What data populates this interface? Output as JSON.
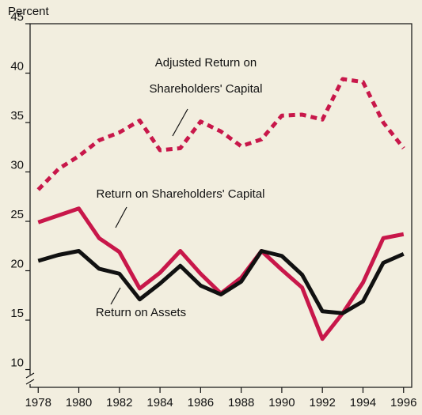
{
  "chart_data": {
    "type": "line",
    "y_axis_label": "Percent",
    "x": [
      1978,
      1979,
      1980,
      1981,
      1982,
      1983,
      1984,
      1985,
      1986,
      1987,
      1988,
      1989,
      1990,
      1991,
      1992,
      1993,
      1994,
      1995,
      1996
    ],
    "xlim": [
      1977.6,
      1996.4
    ],
    "xticks": [
      1978,
      1980,
      1982,
      1984,
      1986,
      1988,
      1990,
      1992,
      1994,
      1996
    ],
    "ylim": [
      8.2,
      45
    ],
    "yticks": [
      10,
      15,
      20,
      25,
      30,
      35,
      40,
      45
    ],
    "series": [
      {
        "name": [
          "Adjusted Return on",
          "Shareholders' Capital"
        ],
        "color": "#c8174a",
        "dashed": true,
        "values": [
          28.2,
          30.3,
          31.6,
          33.2,
          34.0,
          35.2,
          32.2,
          32.4,
          35.1,
          34.1,
          32.6,
          33.3,
          35.7,
          35.8,
          35.3,
          39.4,
          39.1,
          35.0,
          32.4
        ]
      },
      {
        "name": "Return on Shareholders' Capital",
        "color": "#c8174a",
        "dashed": false,
        "values": [
          24.9,
          25.6,
          26.3,
          23.3,
          21.9,
          18.2,
          19.8,
          22.0,
          19.7,
          17.7,
          19.3,
          22.0,
          20.1,
          18.3,
          13.1,
          15.7,
          18.8,
          23.3,
          23.7
        ]
      },
      {
        "name": "Return on Assets",
        "color": "#111111",
        "dashed": false,
        "values": [
          21.0,
          21.6,
          22.0,
          20.2,
          19.7,
          17.1,
          18.7,
          20.5,
          18.5,
          17.6,
          18.9,
          22.0,
          21.5,
          19.6,
          15.9,
          15.7,
          16.9,
          20.8,
          21.7
        ]
      }
    ]
  }
}
